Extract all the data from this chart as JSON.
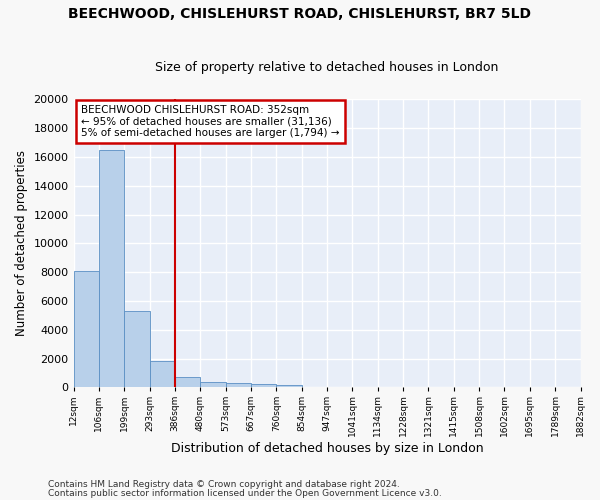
{
  "title1": "BEECHWOOD, CHISLEHURST ROAD, CHISLEHURST, BR7 5LD",
  "title2": "Size of property relative to detached houses in London",
  "xlabel": "Distribution of detached houses by size in London",
  "ylabel": "Number of detached properties",
  "bar_values": [
    8100,
    16500,
    5300,
    1850,
    700,
    350,
    270,
    200,
    170,
    0,
    0,
    0,
    0,
    0,
    0,
    0,
    0,
    0,
    0,
    0
  ],
  "bin_labels": [
    "12sqm",
    "106sqm",
    "199sqm",
    "293sqm",
    "386sqm",
    "480sqm",
    "573sqm",
    "667sqm",
    "760sqm",
    "854sqm",
    "947sqm",
    "1041sqm",
    "1134sqm",
    "1228sqm",
    "1321sqm",
    "1415sqm",
    "1508sqm",
    "1602sqm",
    "1695sqm",
    "1789sqm",
    "1882sqm"
  ],
  "bar_color": "#b8d0ea",
  "bar_edge_color": "#5a8fc4",
  "vline_x": 4,
  "vline_color": "#cc0000",
  "annotation_text": "BEECHWOOD CHISLEHURST ROAD: 352sqm\n← 95% of detached houses are smaller (31,136)\n5% of semi-detached houses are larger (1,794) →",
  "annotation_box_color": "#ffffff",
  "annotation_box_edge": "#cc0000",
  "ylim": [
    0,
    20000
  ],
  "yticks": [
    0,
    2000,
    4000,
    6000,
    8000,
    10000,
    12000,
    14000,
    16000,
    18000,
    20000
  ],
  "footnote1": "Contains HM Land Registry data © Crown copyright and database right 2024.",
  "footnote2": "Contains public sector information licensed under the Open Government Licence v3.0.",
  "bg_color": "#e8eef8",
  "grid_color": "#ffffff",
  "title1_fontsize": 10,
  "title2_fontsize": 9,
  "xlabel_fontsize": 9,
  "ylabel_fontsize": 8.5,
  "footnote_fontsize": 6.5
}
